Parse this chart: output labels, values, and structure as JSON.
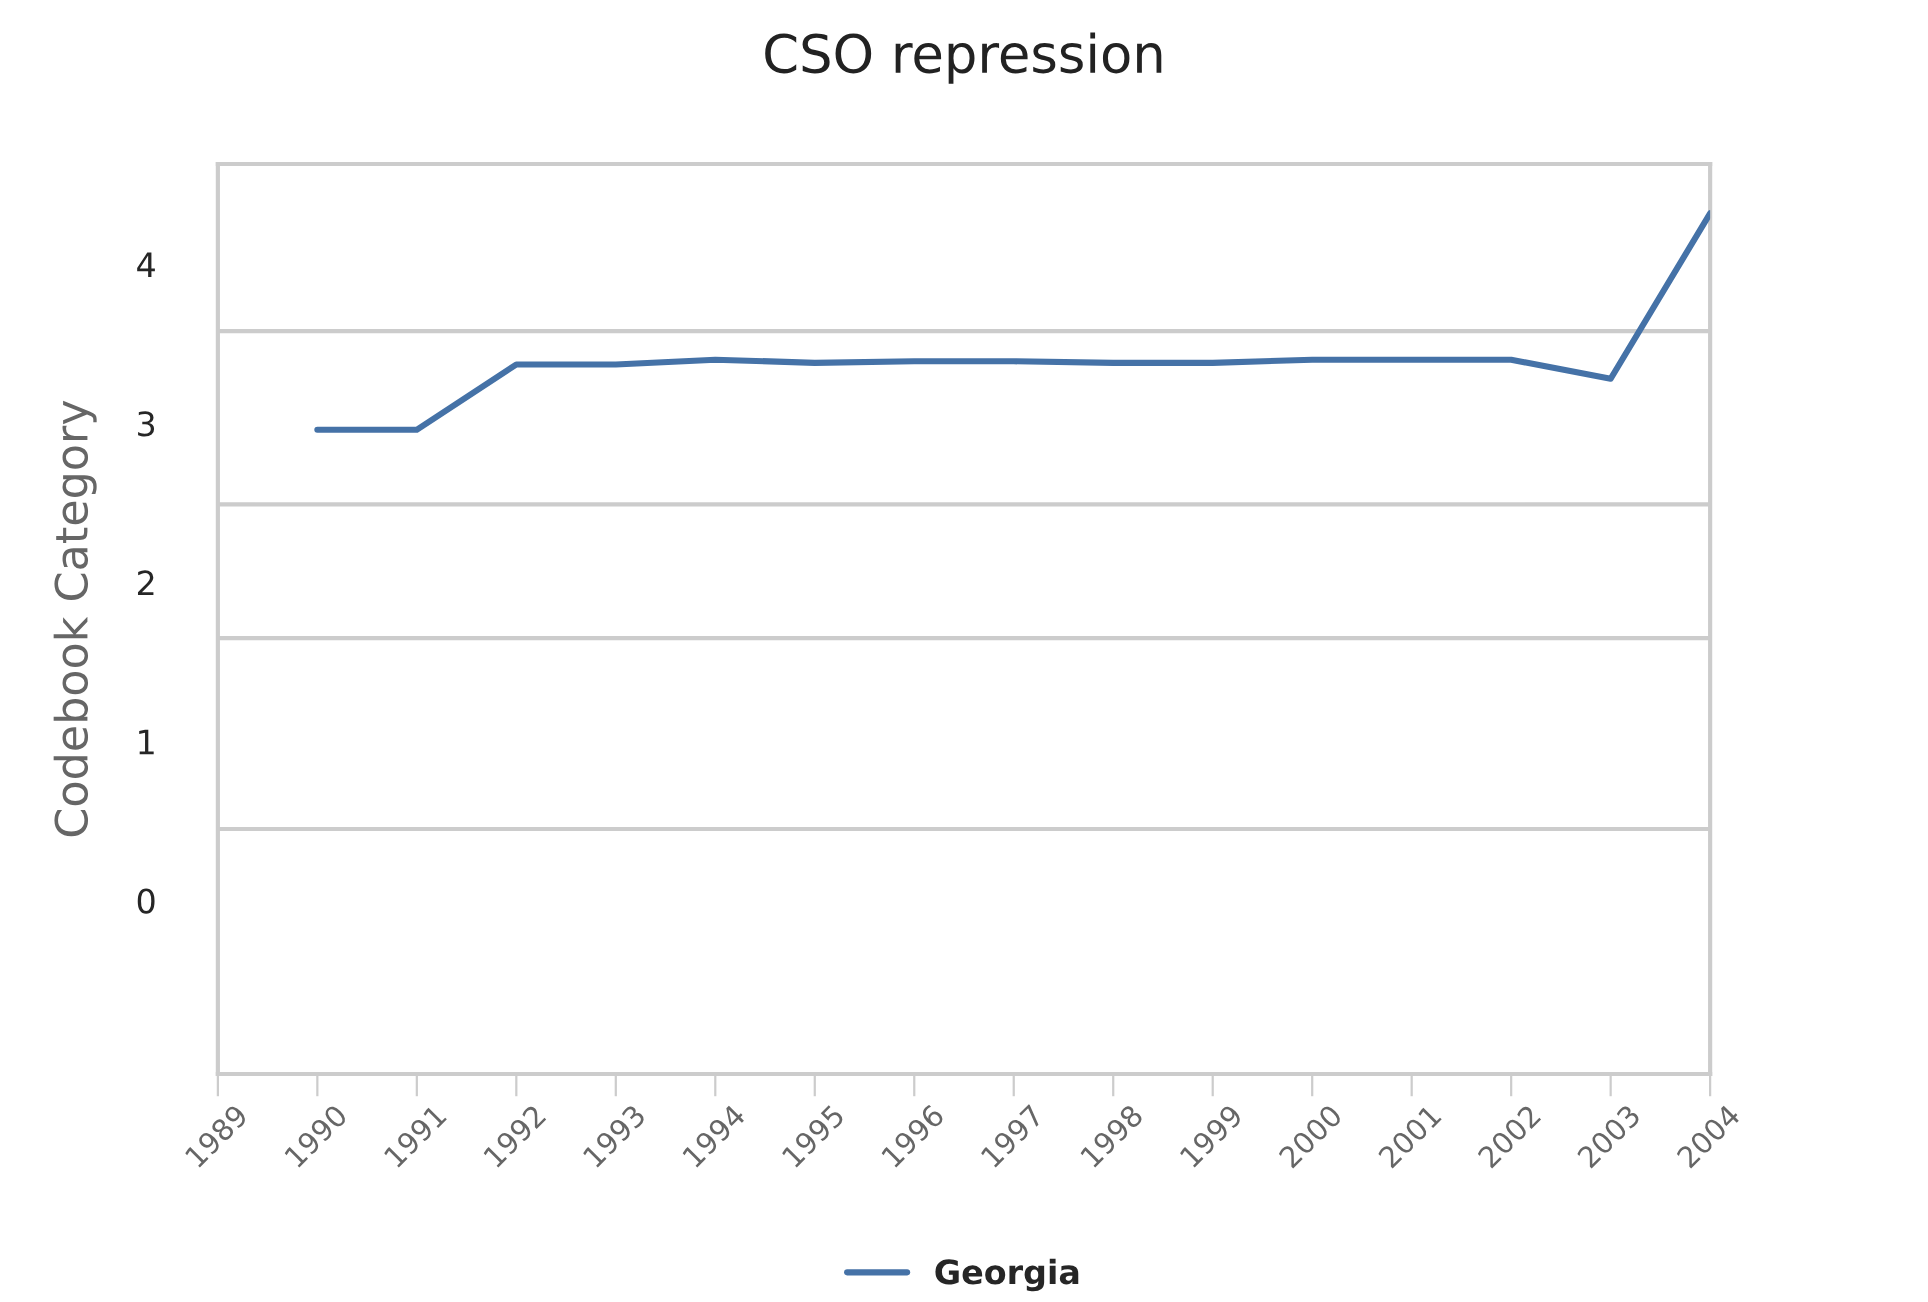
{
  "chart_data": {
    "type": "line",
    "title": "CSO repression",
    "ylabel": "Codebook Category",
    "x": [
      1990,
      1991,
      1992,
      1993,
      1994,
      1995,
      1996,
      1997,
      1998,
      1999,
      2000,
      2001,
      2002,
      2003,
      2004
    ],
    "series": [
      {
        "name": "Georgia",
        "color": "#4572a7",
        "values": [
          2.96,
          2.96,
          3.37,
          3.37,
          3.4,
          3.38,
          3.39,
          3.39,
          3.38,
          3.38,
          3.4,
          3.4,
          3.4,
          3.28,
          4.32
        ]
      }
    ],
    "xlim": [
      1989,
      2004
    ],
    "xticks": [
      1989,
      1990,
      1991,
      1992,
      1993,
      1994,
      1995,
      1996,
      1997,
      1998,
      1999,
      2000,
      2001,
      2002,
      2003,
      2004
    ],
    "ylim": [
      -1.09,
      4.63
    ],
    "yticks": [
      0,
      1,
      2,
      3,
      4
    ],
    "ref_lines": [
      {
        "axis": "y",
        "value": 0.45,
        "color": "#cccccc"
      },
      {
        "axis": "y",
        "value": 1.65,
        "color": "#cccccc"
      },
      {
        "axis": "y",
        "value": 2.49,
        "color": "#cccccc"
      },
      {
        "axis": "y",
        "value": 3.58,
        "color": "#cccccc"
      }
    ],
    "grid": false,
    "legend": "bottom",
    "marker": "none",
    "line_style": "solid"
  }
}
